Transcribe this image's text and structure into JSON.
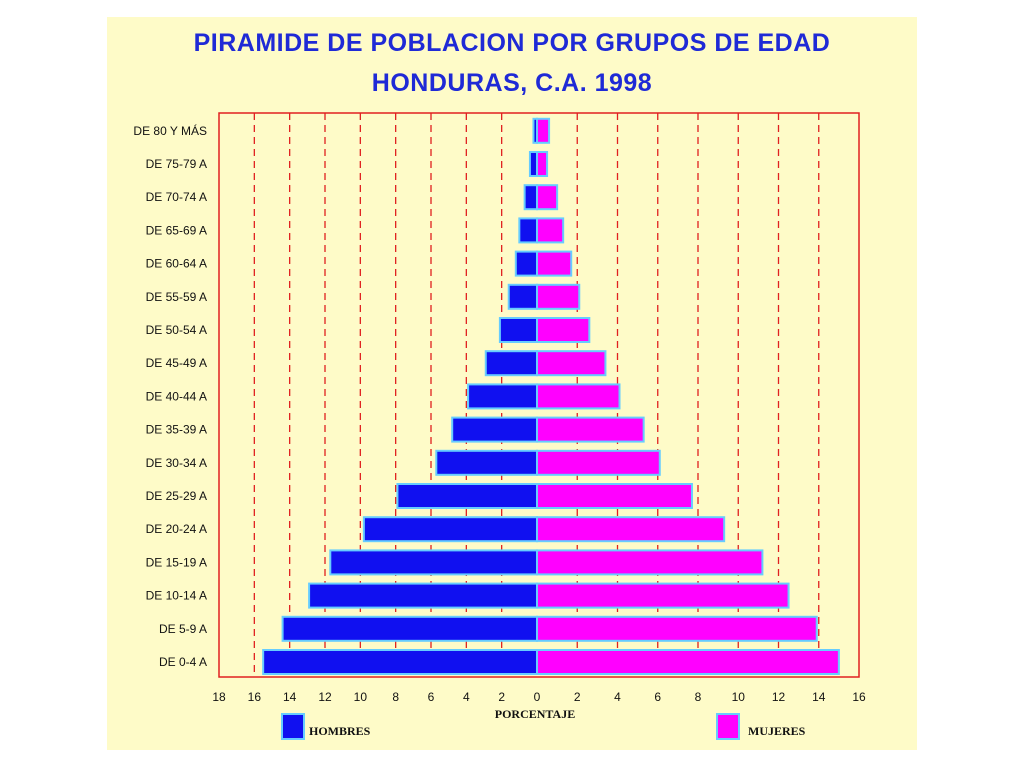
{
  "chart_data": {
    "type": "bar",
    "orientation": "horizontal",
    "subtype": "population-pyramid",
    "title": "PIRAMIDE DE POBLACION POR GRUPOS DE EDAD",
    "subtitle": "HONDURAS, C.A. 1998",
    "xlabel": "PORCENTAJE",
    "ylabel": "",
    "categories": [
      "DE 0-4 A",
      "DE 5-9 A",
      "DE 10-14 A",
      "DE 15-19 A",
      "DE 20-24 A",
      "DE 25-29 A",
      "DE 30-34 A",
      "DE 35-39 A",
      "DE 40-44 A",
      "DE 45-49 A",
      "DE 50-54 A",
      "DE 55-59 A",
      "DE 60-64 A",
      "DE 65-69 A",
      "DE 70-74 A",
      "DE 75-79 A",
      "DE 80 Y MÁS"
    ],
    "series": [
      {
        "name": "HOMBRES",
        "side": "left",
        "color": "#1010f0",
        "values": [
          15.5,
          14.4,
          12.9,
          11.7,
          9.8,
          7.9,
          5.7,
          4.8,
          3.9,
          2.9,
          2.1,
          1.6,
          1.2,
          1.0,
          0.7,
          0.4,
          0.2
        ]
      },
      {
        "name": "MUJERES",
        "side": "right",
        "color": "#ff00ff",
        "values": [
          15.0,
          13.9,
          12.5,
          11.2,
          9.3,
          7.7,
          6.1,
          5.3,
          4.1,
          3.4,
          2.6,
          2.1,
          1.7,
          1.3,
          1.0,
          0.5,
          0.6
        ]
      }
    ],
    "x_ticks_left": [
      "18",
      "16",
      "14",
      "12",
      "10",
      "8",
      "6",
      "4",
      "2"
    ],
    "x_ticks_right": [
      "0",
      "2",
      "4",
      "6",
      "8",
      "10",
      "12",
      "14",
      "16"
    ],
    "xlim_left": [
      0,
      18
    ],
    "xlim_right": [
      0,
      16
    ],
    "gridlines": "dashed vertical red",
    "frame_color": "#e02020",
    "bar_outline_color": "#66ccff",
    "legend": "bottom"
  }
}
